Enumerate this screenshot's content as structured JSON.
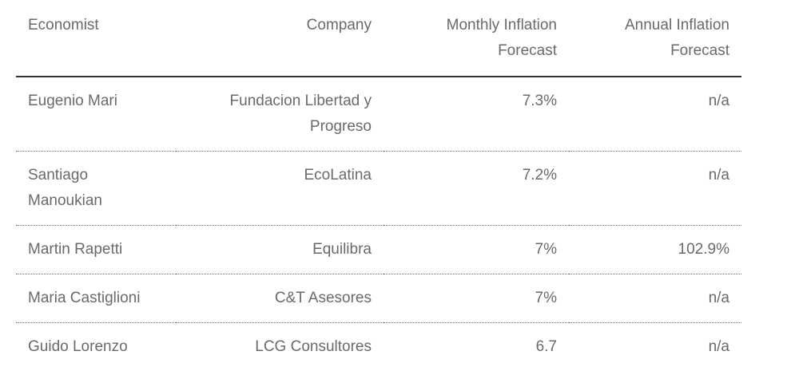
{
  "chart_data": {
    "type": "table",
    "title": "",
    "headers": [
      "Economist",
      "Company",
      "Monthly Inflation Forecast",
      "Annual Inflation Forecast"
    ],
    "headers_display": [
      "Economist",
      "Company",
      "Monthly Inflation\nForecast",
      "Annual Inflation\nForecast"
    ],
    "rows": [
      [
        "Eugenio Mari",
        "Fundacion Libertad y\nProgreso",
        "7.3%",
        "n/a"
      ],
      [
        "Santiago\nManoukian",
        "EcoLatina",
        "7.2%",
        "n/a"
      ],
      [
        "Martin Rapetti",
        "Equilibra",
        "7%",
        "102.9%"
      ],
      [
        "Maria Castiglioni",
        "C&T Asesores",
        "7%",
        "n/a"
      ],
      [
        "Guido Lorenzo",
        "LCG Consultores",
        "6.7",
        "n/a"
      ]
    ],
    "column_alignments": [
      "left",
      "right",
      "right",
      "right"
    ],
    "layout": {
      "grid": "off",
      "header_rule": "solid",
      "row_rule": "dotted"
    },
    "colors": {
      "text": "#6a6a6a",
      "header_rule": "#333333",
      "row_rule": "#707070",
      "background": "#ffffff"
    }
  }
}
